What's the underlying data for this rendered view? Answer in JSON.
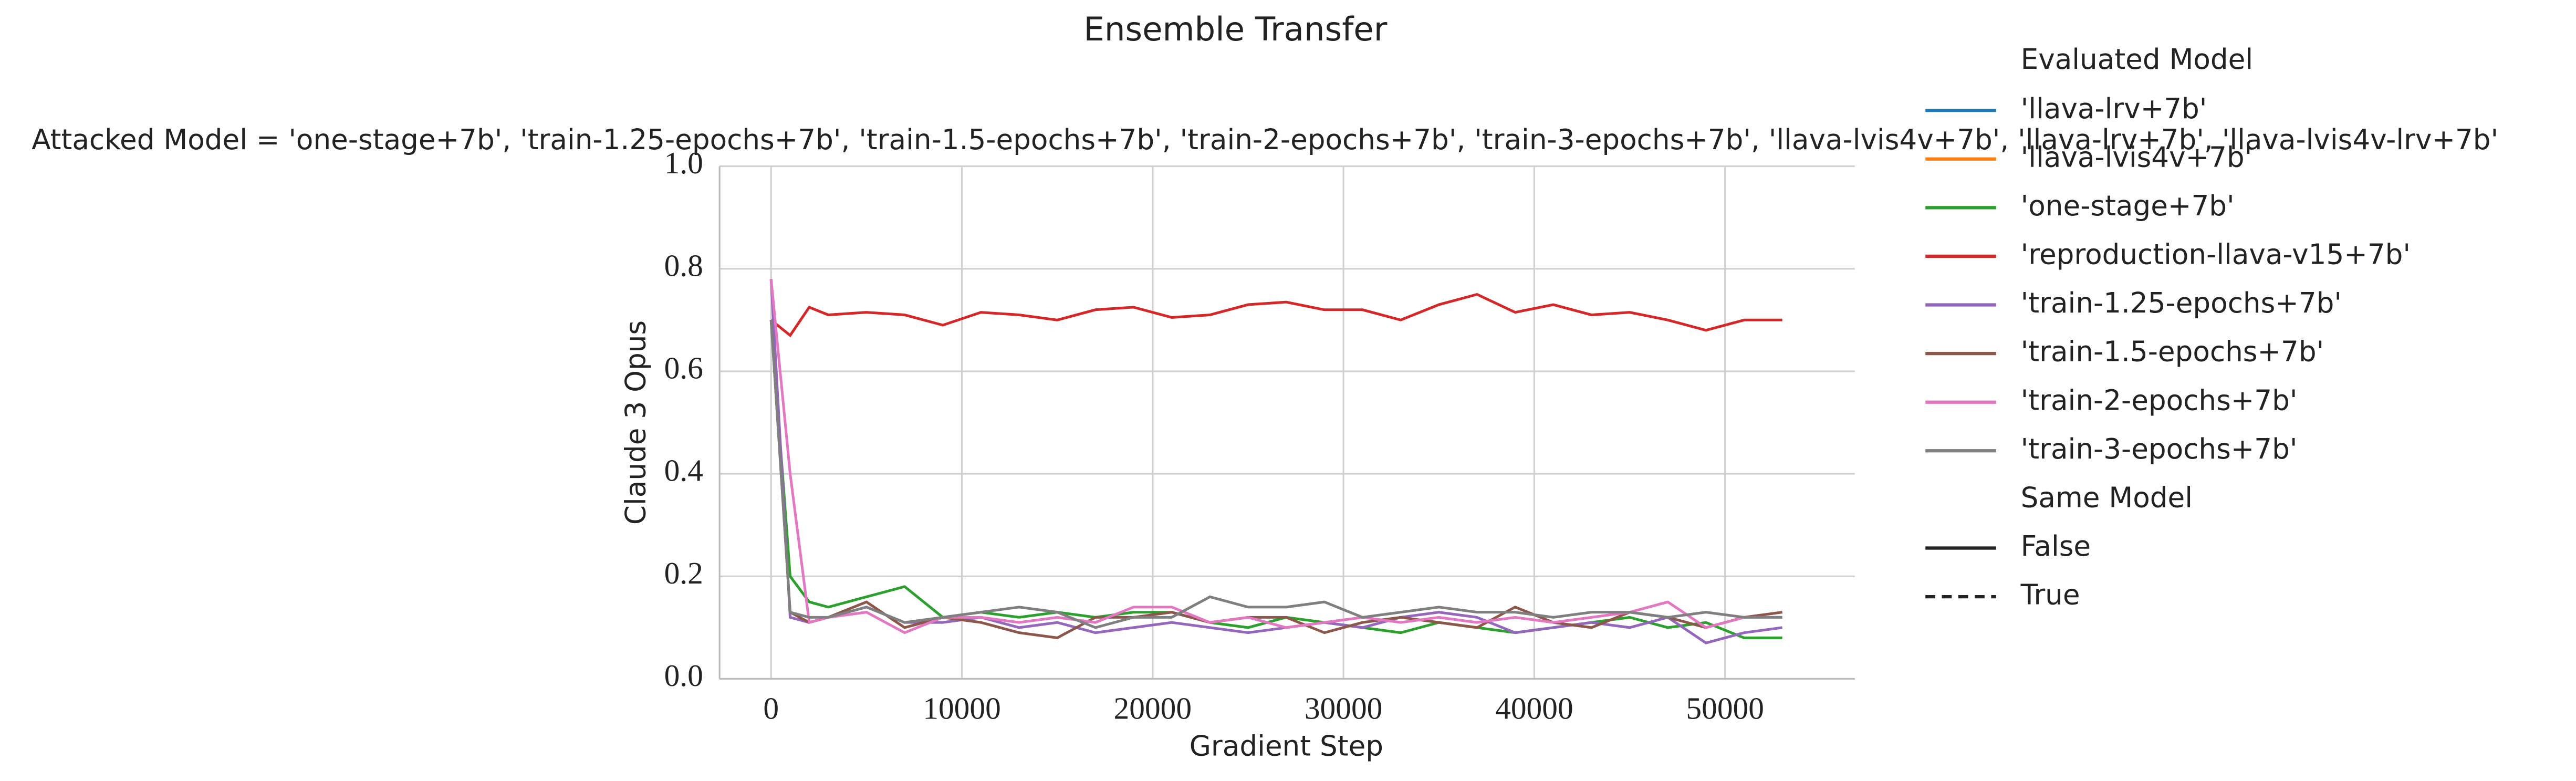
{
  "chart_data": {
    "type": "line",
    "title": "Ensemble Transfer",
    "subtitle": "Attacked Model = 'one-stage+7b', 'train-1.25-epochs+7b', 'train-1.5-epochs+7b', 'train-2-epochs+7b', 'train-3-epochs+7b', 'llava-lvis4v+7b', 'llava-lrv+7b', 'llava-lvis4v-lrv+7b'",
    "x_label": "Gradient Step",
    "y_label": "Claude 3 Opus",
    "x": [
      0,
      1000,
      2000,
      3000,
      5000,
      7000,
      9000,
      11000,
      13000,
      15000,
      17000,
      19000,
      21000,
      23000,
      25000,
      27000,
      29000,
      31000,
      33000,
      35000,
      37000,
      39000,
      41000,
      43000,
      45000,
      47000,
      49000,
      51000,
      53000
    ],
    "legend_title": "Evaluated Model",
    "series": [
      {
        "name": "'llava-lrv+7b'",
        "color": "#1f77b4",
        "values": [
          null,
          null,
          null,
          null,
          null,
          null,
          null,
          null,
          null,
          null,
          null,
          null,
          null,
          null,
          null,
          null,
          null,
          null,
          null,
          null,
          null,
          null,
          null,
          null,
          null,
          null,
          null,
          null,
          null
        ]
      },
      {
        "name": "'llava-lvis4v+7b'",
        "color": "#ff7f0e",
        "values": [
          null,
          null,
          null,
          null,
          null,
          null,
          null,
          null,
          null,
          null,
          null,
          null,
          null,
          null,
          null,
          null,
          null,
          null,
          null,
          null,
          null,
          null,
          null,
          null,
          null,
          null,
          null,
          null,
          null
        ]
      },
      {
        "name": "'one-stage+7b'",
        "color": "#2ca02c",
        "values": [
          0.7,
          0.2,
          0.15,
          0.14,
          0.16,
          0.18,
          0.12,
          0.13,
          0.12,
          0.13,
          0.12,
          0.13,
          0.13,
          0.11,
          0.1,
          0.12,
          0.11,
          0.1,
          0.09,
          0.11,
          0.1,
          0.09,
          0.1,
          0.11,
          0.12,
          0.1,
          0.11,
          0.08,
          0.08
        ]
      },
      {
        "name": "'reproduction-llava-v15+7b'",
        "color": "#d62728",
        "values": [
          0.7,
          0.67,
          0.725,
          0.71,
          0.715,
          0.71,
          0.69,
          0.715,
          0.71,
          0.7,
          0.72,
          0.725,
          0.705,
          0.71,
          0.73,
          0.735,
          0.72,
          0.72,
          0.7,
          0.73,
          0.75,
          0.715,
          0.73,
          0.71,
          0.715,
          0.7,
          0.68,
          0.7,
          0.7
        ]
      },
      {
        "name": "'train-1.25-epochs+7b'",
        "color": "#9467bd",
        "values": [
          0.78,
          0.12,
          0.11,
          0.12,
          0.14,
          0.11,
          0.11,
          0.12,
          0.1,
          0.11,
          0.09,
          0.1,
          0.11,
          0.1,
          0.09,
          0.1,
          0.11,
          0.1,
          0.12,
          0.13,
          0.12,
          0.09,
          0.1,
          0.11,
          0.1,
          0.12,
          0.07,
          0.09,
          0.1
        ]
      },
      {
        "name": "'train-1.5-epochs+7b'",
        "color": "#8c564b",
        "values": [
          0.7,
          0.13,
          0.11,
          0.12,
          0.15,
          0.1,
          0.12,
          0.11,
          0.09,
          0.08,
          0.12,
          0.12,
          0.13,
          0.11,
          0.12,
          0.12,
          0.09,
          0.11,
          0.12,
          0.11,
          0.1,
          0.14,
          0.11,
          0.1,
          0.13,
          0.12,
          0.1,
          0.12,
          0.13
        ]
      },
      {
        "name": "'train-2-epochs+7b'",
        "color": "#e377c2",
        "values": [
          0.78,
          0.4,
          0.11,
          0.12,
          0.13,
          0.09,
          0.12,
          0.12,
          0.11,
          0.12,
          0.11,
          0.14,
          0.14,
          0.11,
          0.12,
          0.1,
          0.11,
          0.12,
          0.11,
          0.12,
          0.11,
          0.12,
          0.11,
          0.12,
          0.13,
          0.15,
          0.1,
          0.12,
          0.12
        ]
      },
      {
        "name": "'train-3-epochs+7b'",
        "color": "#7f7f7f",
        "values": [
          0.7,
          0.13,
          0.12,
          0.12,
          0.14,
          0.11,
          0.12,
          0.13,
          0.14,
          0.13,
          0.1,
          0.12,
          0.12,
          0.16,
          0.14,
          0.14,
          0.15,
          0.12,
          0.13,
          0.14,
          0.13,
          0.13,
          0.12,
          0.13,
          0.13,
          0.12,
          0.13,
          0.12,
          0.12
        ]
      }
    ],
    "style_legend": {
      "title": "Same Model",
      "entries": [
        {
          "label": "False",
          "dashed": false
        },
        {
          "label": "True",
          "dashed": true
        }
      ]
    },
    "xlim": [
      -2700,
      56800
    ],
    "xticks": [
      0,
      10000,
      20000,
      30000,
      40000,
      50000
    ],
    "ylim": [
      0,
      1
    ],
    "yticks": [
      {
        "value": 0,
        "label": "0.0"
      },
      0.2,
      0.4,
      0.6,
      0.8,
      {
        "value": 1,
        "label": "1.0"
      }
    ],
    "grid": true
  }
}
